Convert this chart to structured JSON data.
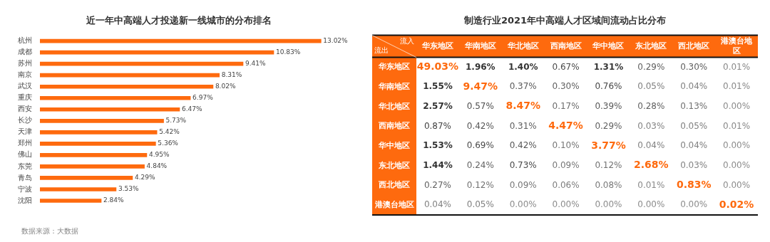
{
  "chart_data": [
    {
      "type": "bar",
      "orientation": "horizontal",
      "title": "近一年中高端人才投递新一线城市的分布排名",
      "categories": [
        "杭州",
        "成都",
        "苏州",
        "南京",
        "武汉",
        "重庆",
        "西安",
        "长沙",
        "天津",
        "郑州",
        "佛山",
        "东莞",
        "青岛",
        "宁波",
        "沈阳"
      ],
      "values": [
        13.02,
        10.83,
        9.41,
        8.31,
        8.02,
        6.97,
        6.47,
        5.73,
        5.42,
        5.36,
        4.95,
        4.84,
        4.29,
        3.53,
        2.84
      ],
      "value_labels": [
        "13.02%",
        "10.83%",
        "9.41%",
        "8.31%",
        "8.02%",
        "6.97%",
        "6.47%",
        "5.73%",
        "5.42%",
        "5.36%",
        "4.95%",
        "4.84%",
        "4.29%",
        "3.53%",
        "2.84%"
      ],
      "color": "#fe6a0e",
      "tick_labels": "y",
      "legend": false,
      "annotations": [
        "数据来源：大数据"
      ]
    },
    {
      "type": "heatmap",
      "title": "制造行业2021年中高端人才区域间流动占比分布",
      "xlabel": "流入",
      "ylabel": "流出",
      "categories": [
        "华东地区",
        "华南地区",
        "华北地区",
        "西南地区",
        "华中地区",
        "东北地区",
        "西北地区",
        "港澳台地区"
      ],
      "y_categories": [
        "华东地区",
        "华南地区",
        "华北地区",
        "西南地区",
        "华中地区",
        "东北地区",
        "西北地区",
        "港澳台地区"
      ],
      "cells": [
        [
          49.03,
          1.96,
          1.4,
          0.67,
          1.31,
          0.29,
          0.3,
          0.01
        ],
        [
          1.55,
          9.47,
          0.37,
          0.3,
          0.76,
          0.05,
          0.04,
          0.01
        ],
        [
          2.57,
          0.57,
          8.47,
          0.17,
          0.39,
          0.28,
          0.13,
          0.0
        ],
        [
          0.87,
          0.42,
          0.31,
          4.47,
          0.29,
          0.03,
          0.05,
          0.01
        ],
        [
          1.53,
          0.69,
          0.42,
          0.1,
          3.77,
          0.04,
          0.04,
          0.0
        ],
        [
          1.44,
          0.24,
          0.73,
          0.09,
          0.12,
          2.68,
          0.03,
          0.0
        ],
        [
          0.27,
          0.12,
          0.09,
          0.06,
          0.08,
          0.01,
          0.83,
          0.0
        ],
        [
          0.04,
          0.05,
          0.0,
          0.0,
          0.0,
          0.0,
          0.0,
          0.02
        ]
      ],
      "cell_labels": [
        [
          "49.03%",
          "1.96%",
          "1.40%",
          "0.67%",
          "1.31%",
          "0.29%",
          "0.30%",
          "0.01%"
        ],
        [
          "1.55%",
          "9.47%",
          "0.37%",
          "0.30%",
          "0.76%",
          "0.05%",
          "0.04%",
          "0.01%"
        ],
        [
          "2.57%",
          "0.57%",
          "8.47%",
          "0.17%",
          "0.39%",
          "0.28%",
          "0.13%",
          "0.00%"
        ],
        [
          "0.87%",
          "0.42%",
          "0.31%",
          "4.47%",
          "0.29%",
          "0.03%",
          "0.05%",
          "0.01%"
        ],
        [
          "1.53%",
          "0.69%",
          "0.42%",
          "0.10%",
          "3.77%",
          "0.04%",
          "0.04%",
          "0.00%"
        ],
        [
          "1.44%",
          "0.24%",
          "0.73%",
          "0.09%",
          "0.12%",
          "2.68%",
          "0.03%",
          "0.00%"
        ],
        [
          "0.27%",
          "0.12%",
          "0.09%",
          "0.06%",
          "0.08%",
          "0.01%",
          "0.83%",
          "0.00%"
        ],
        [
          "0.04%",
          "0.05%",
          "0.00%",
          "0.00%",
          "0.00%",
          "0.00%",
          "0.00%",
          "0.02%"
        ]
      ],
      "color": "#fe6a0e"
    }
  ]
}
